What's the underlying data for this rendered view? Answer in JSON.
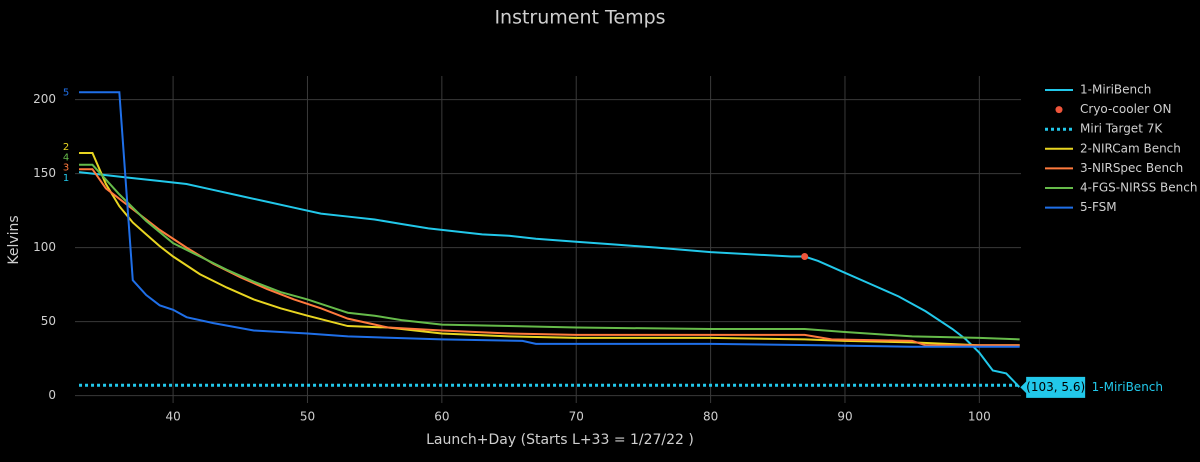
{
  "chart_data": {
    "type": "line",
    "title": "Instrument Temps",
    "x_label": "Launch+Day (Starts L+33 = 1/27/22 )",
    "y_label": "Kelvins",
    "xlim": [
      32.7,
      103.1
    ],
    "ylim": [
      -5,
      216
    ],
    "xticks": [
      40,
      50,
      60,
      70,
      80,
      90,
      100
    ],
    "yticks": [
      0,
      50,
      100,
      150,
      200
    ],
    "grid": true,
    "legend": "right",
    "series": [
      {
        "name": "1-MiriBench",
        "color": "#22c8ea",
        "mode": "lines",
        "x": [
          33,
          35,
          37,
          39,
          41,
          43,
          45,
          47,
          49,
          51,
          53,
          55,
          57,
          59,
          61,
          63,
          65,
          67,
          70,
          73,
          76,
          80,
          84,
          86,
          87,
          88,
          90,
          92,
          94,
          96,
          98,
          99,
          100,
          101,
          102,
          103
        ],
        "values": [
          151,
          149,
          147,
          145,
          143,
          139,
          135,
          131,
          127,
          123,
          121,
          119,
          116,
          113,
          111,
          109,
          108,
          106,
          104,
          102,
          100,
          97,
          95,
          94,
          94,
          91,
          83,
          75,
          67,
          57,
          45,
          38,
          29,
          17,
          15,
          5.6
        ]
      },
      {
        "name": "Cryo-cooler ON",
        "color": "#ef553b",
        "mode": "markers",
        "x": [
          87
        ],
        "values": [
          94
        ]
      },
      {
        "name": "Miri Target 7K",
        "color": "#22c8ea",
        "mode": "lines",
        "dash": "dot",
        "x": [
          33,
          103
        ],
        "values": [
          7,
          7
        ]
      },
      {
        "name": "2-NIRCam Bench",
        "color": "#e8d521",
        "mode": "lines",
        "x": [
          33,
          34,
          35,
          36,
          37,
          38,
          39,
          40,
          42,
          44,
          46,
          48,
          50,
          53,
          56,
          60,
          65,
          70,
          80,
          87,
          90,
          95,
          100,
          103
        ],
        "values": [
          164,
          164,
          143,
          128,
          117,
          109,
          101,
          94,
          82,
          73,
          65,
          59,
          54,
          47,
          46,
          42,
          40,
          39,
          39,
          38,
          37,
          36,
          34,
          34
        ]
      },
      {
        "name": "3-NIRSpec Bench",
        "color": "#ff7a3d",
        "mode": "lines",
        "x": [
          33,
          34,
          35,
          37,
          39,
          41,
          43,
          45,
          47,
          49,
          51,
          53,
          56,
          60,
          65,
          70,
          80,
          87,
          89,
          95,
          96,
          100,
          103
        ],
        "values": [
          153,
          153,
          140,
          126,
          112,
          100,
          89,
          80,
          72,
          65,
          59,
          52,
          46,
          44,
          42,
          41,
          41,
          41,
          38,
          37,
          34,
          34,
          34
        ]
      },
      {
        "name": "4-FGS-NIRSS Bench",
        "color": "#66bb4a",
        "mode": "lines",
        "x": [
          33,
          34,
          36,
          38,
          40,
          42,
          44,
          46,
          48,
          50,
          52,
          53,
          55,
          57,
          60,
          65,
          70,
          80,
          87,
          90,
          95,
          100,
          103
        ],
        "values": [
          156,
          156,
          136,
          118,
          103,
          94,
          85,
          77,
          70,
          65,
          59,
          56,
          54,
          51,
          48,
          47,
          46,
          45,
          45,
          43,
          40,
          39,
          38
        ]
      },
      {
        "name": "5-FSM",
        "color": "#1f6fe8",
        "mode": "lines",
        "x": [
          33,
          36,
          37,
          38,
          39,
          40,
          41,
          43,
          46,
          50,
          53,
          60,
          66,
          67,
          80,
          88,
          95,
          103
        ],
        "values": [
          205,
          205,
          78,
          68,
          61,
          58,
          53,
          49,
          44,
          42,
          40,
          38,
          37,
          35,
          35,
          34,
          33,
          33
        ]
      }
    ],
    "annotations": [
      {
        "text": "5",
        "y": 205,
        "color": "#1f6fe8"
      },
      {
        "text": "2",
        "y": 168,
        "color": "#e8d521"
      },
      {
        "text": "4",
        "y": 161,
        "color": "#66bb4a"
      },
      {
        "text": "3",
        "y": 154,
        "color": "#ff7a3d"
      },
      {
        "text": "1",
        "y": 147,
        "color": "#22c8ea"
      }
    ],
    "hover": {
      "label": "(103, 5.6)",
      "name": "1-MiriBench",
      "x": 103,
      "y": 5.6
    }
  }
}
